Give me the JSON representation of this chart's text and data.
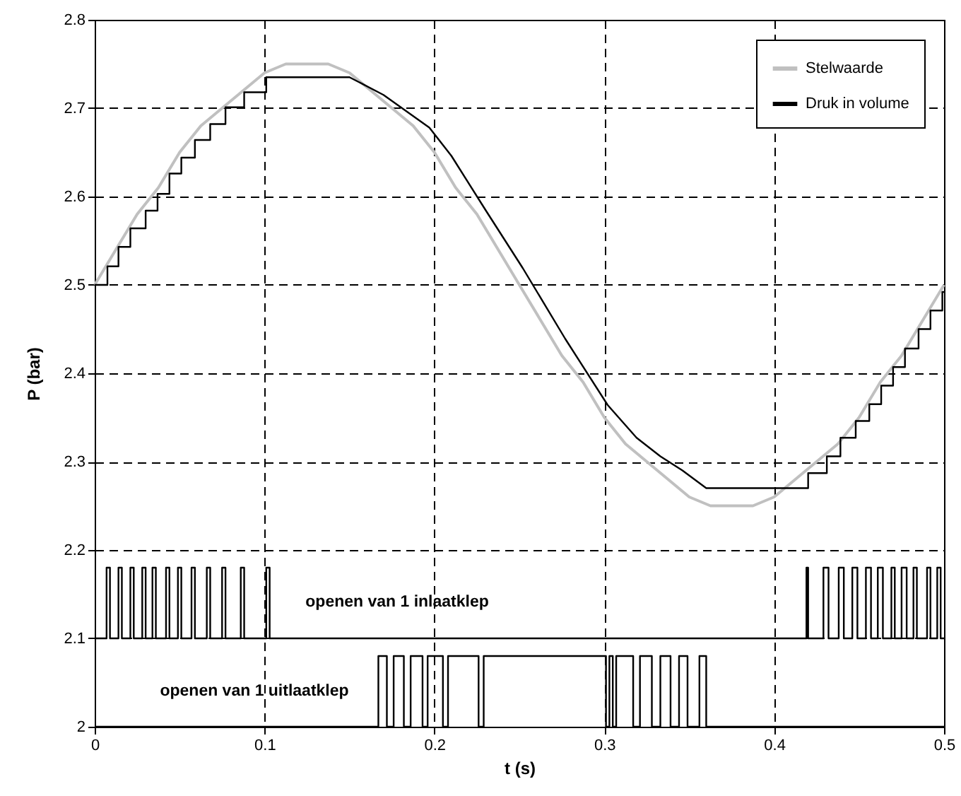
{
  "chart_data": {
    "type": "line",
    "xlabel": "t (s)",
    "ylabel": "P (bar)",
    "xlim": [
      0,
      0.5
    ],
    "xticks": [
      0,
      0.1,
      0.2,
      0.3,
      0.4,
      0.5
    ],
    "ylim": [
      2,
      2.8
    ],
    "yticks": [
      2,
      2.1,
      2.2,
      2.3,
      2.4,
      2.5,
      2.6,
      2.7,
      2.8
    ],
    "grid": true,
    "legend": "top right",
    "line_style": "solid",
    "marker": "none",
    "annotations": [
      "openen van 1 inlaatklep",
      "openen van 1 uitlaatklep"
    ],
    "series": [
      {
        "name": "Stelwaarde",
        "color": "#c0c0c0",
        "x": [
          0,
          0.0125,
          0.025,
          0.0375,
          0.05,
          0.0625,
          0.075,
          0.0875,
          0.1,
          0.1125,
          0.125,
          0.1375,
          0.15,
          0.1625,
          0.175,
          0.1875,
          0.2,
          0.2125,
          0.225,
          0.2375,
          0.25,
          0.2625,
          0.275,
          0.2875,
          0.3,
          0.3125,
          0.325,
          0.3375,
          0.35,
          0.3625,
          0.375,
          0.3875,
          0.4,
          0.4125,
          0.425,
          0.4375,
          0.45,
          0.4625,
          0.475,
          0.4875,
          0.5
        ],
        "values": [
          2.5,
          2.54,
          2.58,
          2.61,
          2.65,
          2.68,
          2.7,
          2.72,
          2.74,
          2.75,
          2.75,
          2.75,
          2.74,
          2.72,
          2.7,
          2.68,
          2.65,
          2.61,
          2.58,
          2.54,
          2.5,
          2.46,
          2.42,
          2.39,
          2.35,
          2.32,
          2.3,
          2.28,
          2.26,
          2.25,
          2.25,
          2.25,
          2.26,
          2.28,
          2.3,
          2.32,
          2.35,
          2.39,
          2.42,
          2.46,
          2.5
        ]
      },
      {
        "name": "Druk in volume",
        "color": "#000000",
        "x": [
          0,
          0.0075,
          0.0075,
          0.014,
          0.014,
          0.021,
          0.021,
          0.03,
          0.03,
          0.037,
          0.037,
          0.044,
          0.044,
          0.051,
          0.051,
          0.059,
          0.059,
          0.068,
          0.068,
          0.077,
          0.077,
          0.088,
          0.088,
          0.101,
          0.101,
          0.15,
          0.17,
          0.197,
          0.21,
          0.23,
          0.252,
          0.277,
          0.302,
          0.319,
          0.333,
          0.346,
          0.36,
          0.42,
          0.42,
          0.431,
          0.431,
          0.439,
          0.439,
          0.448,
          0.448,
          0.456,
          0.456,
          0.463,
          0.463,
          0.47,
          0.47,
          0.477,
          0.477,
          0.485,
          0.485,
          0.492,
          0.492,
          0.499,
          0.499,
          0.5
        ],
        "values": [
          2.5,
          2.5,
          2.521,
          2.521,
          2.543,
          2.543,
          2.564,
          2.564,
          2.584,
          2.584,
          2.603,
          2.603,
          2.626,
          2.626,
          2.644,
          2.644,
          2.664,
          2.664,
          2.682,
          2.682,
          2.701,
          2.701,
          2.718,
          2.718,
          2.735,
          2.735,
          2.715,
          2.678,
          2.646,
          2.585,
          2.519,
          2.439,
          2.364,
          2.327,
          2.306,
          2.29,
          2.27,
          2.27,
          2.287,
          2.287,
          2.306,
          2.306,
          2.327,
          2.327,
          2.346,
          2.346,
          2.365,
          2.365,
          2.386,
          2.386,
          2.407,
          2.407,
          2.428,
          2.428,
          2.45,
          2.45,
          2.471,
          2.471,
          2.492,
          2.492
        ]
      },
      {
        "color": "#000000",
        "type": "step",
        "x": [
          0,
          0.007,
          0.009,
          0.014,
          0.016,
          0.021,
          0.023,
          0.028,
          0.03,
          0.034,
          0.036,
          0.042,
          0.044,
          0.049,
          0.051,
          0.057,
          0.059,
          0.066,
          0.068,
          0.075,
          0.077,
          0.086,
          0.088,
          0.101,
          0.103,
          0.419,
          0.42,
          0.429,
          0.432,
          0.438,
          0.441,
          0.446,
          0.449,
          0.454,
          0.457,
          0.461,
          0.464,
          0.469,
          0.471,
          0.475,
          0.478,
          0.482,
          0.484,
          0.49,
          0.492,
          0.496,
          0.498,
          0.5
        ],
        "values": [
          2.1,
          2.18,
          2.1,
          2.18,
          2.1,
          2.18,
          2.1,
          2.18,
          2.1,
          2.18,
          2.1,
          2.18,
          2.1,
          2.18,
          2.1,
          2.18,
          2.1,
          2.18,
          2.1,
          2.18,
          2.1,
          2.18,
          2.1,
          2.18,
          2.1,
          2.18,
          2.1,
          2.18,
          2.1,
          2.18,
          2.1,
          2.18,
          2.1,
          2.18,
          2.1,
          2.18,
          2.1,
          2.18,
          2.1,
          2.18,
          2.1,
          2.18,
          2.1,
          2.18,
          2.1,
          2.18,
          2.1,
          2.1
        ]
      },
      {
        "color": "#000000",
        "type": "step",
        "x": [
          0,
          0.167,
          0.172,
          0.176,
          0.182,
          0.186,
          0.193,
          0.196,
          0.205,
          0.208,
          0.226,
          0.229,
          0.301,
          0.303,
          0.305,
          0.307,
          0.317,
          0.321,
          0.328,
          0.333,
          0.339,
          0.344,
          0.349,
          0.356,
          0.36,
          0.5
        ],
        "values": [
          2,
          2.08,
          2,
          2.08,
          2,
          2.08,
          2,
          2.08,
          2,
          2.08,
          2,
          2.08,
          2,
          2.08,
          2,
          2.08,
          2,
          2.08,
          2,
          2.08,
          2,
          2.08,
          2,
          2.08,
          2,
          2
        ]
      }
    ]
  }
}
